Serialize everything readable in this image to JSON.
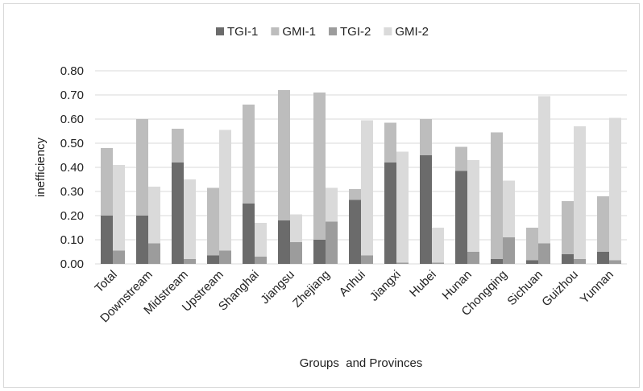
{
  "chart_data": {
    "type": "bar",
    "title": "",
    "xlabel": "Groups  and Provinces",
    "ylabel": "inefficiency",
    "ylim": [
      0,
      0.8
    ],
    "yticks": [
      "0.00",
      "0.10",
      "0.20",
      "0.30",
      "0.40",
      "0.50",
      "0.60",
      "0.70",
      "0.80"
    ],
    "grid": true,
    "legend_position": "top",
    "categories": [
      "Total",
      "Downstream",
      "Midstream",
      "Upstream",
      "Shanghai",
      "Jiangsu",
      "Zhejiang",
      "Anhui",
      "Jiangxi",
      "Hubei",
      "Hunan",
      "Chongqing",
      "Sichuan",
      "Guizhou",
      "Yunnan"
    ],
    "series": [
      {
        "name": "TGI-1",
        "stack": "1",
        "color": "#6b6b6b",
        "values": [
          0.2,
          0.2,
          0.42,
          0.035,
          0.25,
          0.18,
          0.1,
          0.265,
          0.42,
          0.45,
          0.385,
          0.02,
          0.015,
          0.04,
          0.05
        ]
      },
      {
        "name": "GMI-1",
        "stack": "1",
        "color": "#bdbdbd",
        "values": [
          0.28,
          0.4,
          0.14,
          0.28,
          0.41,
          0.54,
          0.61,
          0.045,
          0.165,
          0.15,
          0.1,
          0.525,
          0.135,
          0.22,
          0.23
        ]
      },
      {
        "name": "TGI-2",
        "stack": "2",
        "color": "#9c9c9c",
        "values": [
          0.055,
          0.085,
          0.02,
          0.055,
          0.03,
          0.09,
          0.175,
          0.035,
          0.005,
          0.005,
          0.05,
          0.11,
          0.085,
          0.02,
          0.015
        ]
      },
      {
        "name": "GMI-2",
        "stack": "2",
        "color": "#dadada",
        "values": [
          0.355,
          0.235,
          0.33,
          0.5,
          0.14,
          0.115,
          0.14,
          0.56,
          0.46,
          0.145,
          0.38,
          0.235,
          0.61,
          0.55,
          0.59
        ]
      }
    ]
  }
}
